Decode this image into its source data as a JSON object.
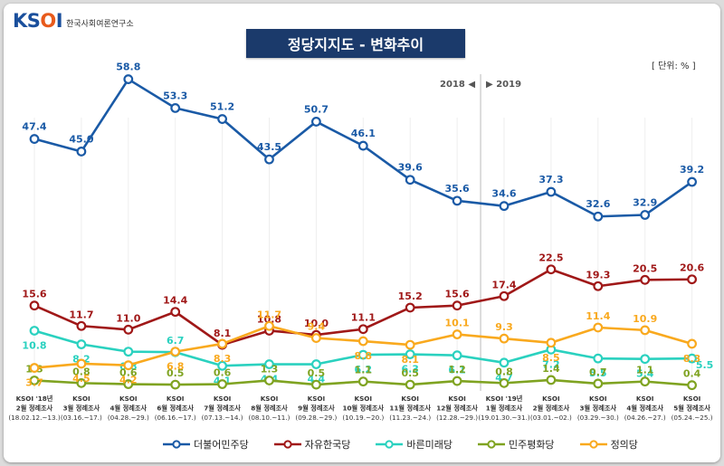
{
  "logo": {
    "mark": "KSOI",
    "sub": "한국사회여론연구소"
  },
  "unit": "[ 단위: % ]",
  "chart_data": {
    "type": "line",
    "title": "정당지지도 - 변화추이",
    "categories": [
      [
        "KSOI '18년",
        "2월 정례조사",
        "(18.02.12.~13.)"
      ],
      [
        "KSOI",
        "3월 정례조사",
        "(03.16.~17.)"
      ],
      [
        "KSOI",
        "4월 정례조사",
        "(04.28.~29.)"
      ],
      [
        "KSOI",
        "6월 정례조사",
        "(06.16.~17.)"
      ],
      [
        "KSOI",
        "7월 정례조사",
        "(07.13.~14.)"
      ],
      [
        "KSOI",
        "8월 정례조사",
        "(08.10.~11.)"
      ],
      [
        "KSOI",
        "9월 정례조사",
        "(09.28.~29.)"
      ],
      [
        "KSOI",
        "10월 정례조사",
        "(10.19.~20.)"
      ],
      [
        "KSOI",
        "11월 정례조사",
        "(11.23.~24.)"
      ],
      [
        "KSOI",
        "12월 정례조사",
        "(12.28.~29.)"
      ],
      [
        "KSOI '19년",
        "1월 정례조사",
        "(19.01.30.~31.)"
      ],
      [
        "KSOI",
        "2월 정례조사",
        "(03.01.~02.)"
      ],
      [
        "KSOI",
        "3월 정례조사",
        "(03.29.~30.)"
      ],
      [
        "KSOI",
        "4월 정례조사",
        "(04.26.~27.)"
      ],
      [
        "KSOI",
        "5월 정례조사",
        "(05.24.~25.)"
      ]
    ],
    "divider": {
      "left_label": "2018 ◀",
      "right_label": "▶ 2019"
    },
    "ylim": [
      0,
      62
    ],
    "grid": false,
    "legend_position": "bottom",
    "series": [
      {
        "name": "더불어민주당",
        "color": "#1a5aa6",
        "values": [
          47.4,
          45.0,
          58.8,
          53.3,
          51.2,
          43.5,
          50.7,
          46.1,
          39.6,
          35.6,
          34.6,
          37.3,
          32.6,
          32.9,
          39.2
        ]
      },
      {
        "name": "자유한국당",
        "color": "#a01818",
        "values": [
          15.6,
          11.7,
          11.0,
          14.4,
          8.1,
          10.8,
          10.0,
          11.1,
          15.2,
          15.6,
          17.4,
          22.5,
          19.3,
          20.5,
          20.6
        ]
      },
      {
        "name": "바른미래당",
        "color": "#2ad1bf",
        "values": [
          10.8,
          8.2,
          6.8,
          6.7,
          4.1,
          4.4,
          4.4,
          6.2,
          6.3,
          6.1,
          4.7,
          7.2,
          5.5,
          5.4,
          5.5
        ]
      },
      {
        "name": "민주평화당",
        "color": "#7fa321",
        "values": [
          1.3,
          0.8,
          0.6,
          0.5,
          0.6,
          1.3,
          0.5,
          1.1,
          0.5,
          1.2,
          0.8,
          1.4,
          0.7,
          1.1,
          0.4
        ]
      },
      {
        "name": "정의당",
        "color": "#f9a91e",
        "values": [
          3.7,
          4.5,
          4.2,
          6.8,
          8.3,
          11.7,
          9.4,
          8.8,
          8.1,
          10.1,
          9.3,
          8.5,
          11.4,
          10.9,
          8.3
        ]
      }
    ]
  }
}
